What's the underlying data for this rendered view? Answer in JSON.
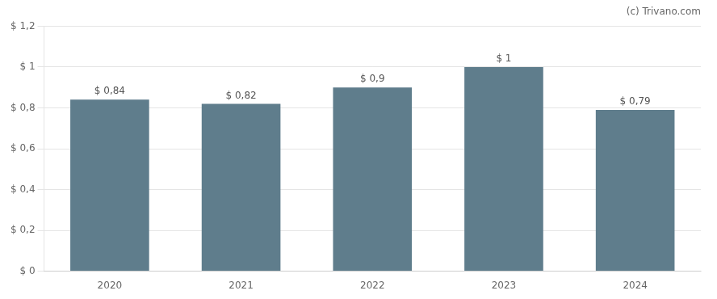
{
  "chart_data": {
    "type": "bar",
    "categories": [
      "2020",
      "2021",
      "2022",
      "2023",
      "2024"
    ],
    "values": [
      0.84,
      0.82,
      0.9,
      1.0,
      0.79
    ],
    "value_labels": [
      "$ 0,84",
      "$ 0,82",
      "$ 0,9",
      "$ 1",
      "$ 0,79"
    ],
    "data_labels": true,
    "color": "#5f7d8c",
    "ylim": [
      0,
      1.2
    ],
    "yticks": [
      {
        "value": 0,
        "label": "$ 0"
      },
      {
        "value": 0.2,
        "label": "$ 0,2"
      },
      {
        "value": 0.4,
        "label": "$ 0,4"
      },
      {
        "value": 0.6,
        "label": "$ 0,6"
      },
      {
        "value": 0.8,
        "label": "$ 0,8"
      },
      {
        "value": 1.0,
        "label": "$ 1"
      },
      {
        "value": 1.2,
        "label": "$ 1,2"
      }
    ],
    "grid": true,
    "annotations": [
      "(c) Trivano.com"
    ]
  }
}
